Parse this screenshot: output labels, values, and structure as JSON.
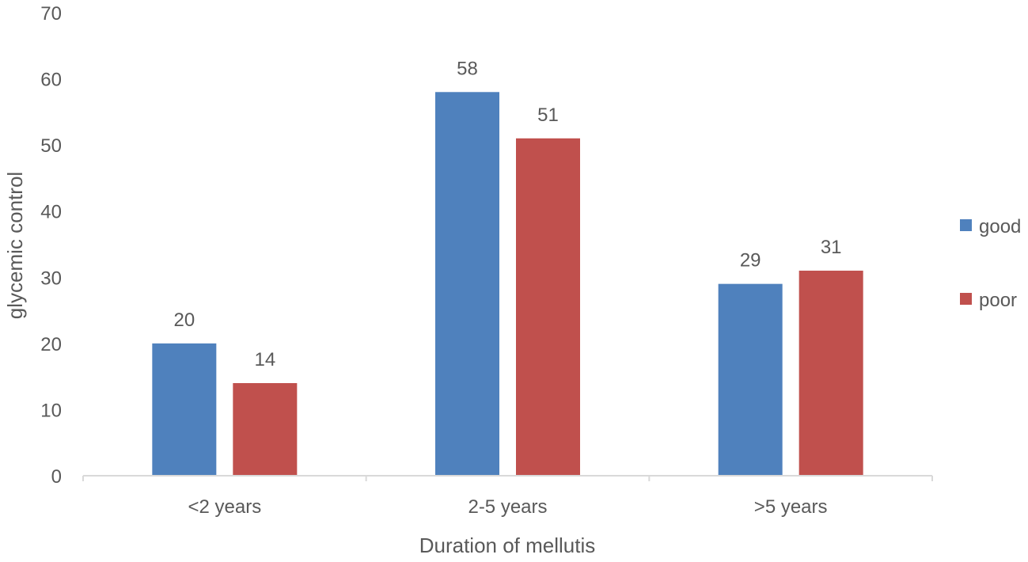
{
  "chart_data": {
    "type": "bar",
    "title": "",
    "xlabel": "Duration of mellutis",
    "ylabel": "glycemic control",
    "categories": [
      "<2 years",
      "2-5 years",
      ">5 years"
    ],
    "series": [
      {
        "name": "good",
        "values": [
          20,
          58,
          29
        ],
        "color": "#4f81bd"
      },
      {
        "name": "poor",
        "values": [
          14,
          51,
          31
        ],
        "color": "#c0504d"
      }
    ],
    "ylim": [
      0,
      70
    ],
    "yticks": [
      0,
      10,
      20,
      30,
      40,
      50,
      60,
      70
    ],
    "grid": false,
    "legend_position": "right"
  }
}
